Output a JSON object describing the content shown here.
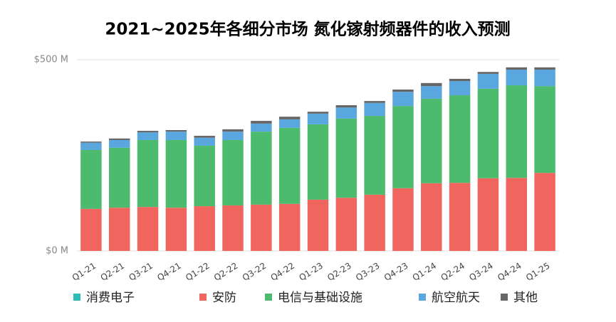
{
  "chart_data": {
    "type": "stacked_bar",
    "title": "2021~2025年各细分市场 氮化镓射频器件的收入预测",
    "categories": [
      "Q1-21",
      "Q2-21",
      "Q3-21",
      "Q4-21",
      "Q1-22",
      "Q2-22",
      "Q3-22",
      "Q4-22",
      "Q1-23",
      "Q2-23",
      "Q3-23",
      "Q4-23",
      "Q1-24",
      "Q2-24",
      "Q3-24",
      "Q4-24",
      "Q1-25"
    ],
    "series": [
      {
        "name": "消费电子",
        "color": "#2bbdb5",
        "values": [
          0,
          0,
          0,
          0,
          0,
          0,
          0,
          0,
          0,
          0,
          0,
          0,
          0,
          0,
          0,
          0,
          0
        ]
      },
      {
        "name": "安防",
        "color": "#f0665e",
        "values": [
          110,
          113,
          115,
          113,
          117,
          119,
          121,
          123,
          134,
          139,
          147,
          164,
          177,
          178,
          190,
          191,
          204
        ]
      },
      {
        "name": "电信与基础设施",
        "color": "#4dbb6e",
        "values": [
          154,
          157,
          175,
          177,
          158,
          171,
          191,
          199,
          197,
          207,
          206,
          215,
          221,
          229,
          234,
          242,
          227
        ]
      },
      {
        "name": "航空航天",
        "color": "#5aa6df",
        "values": [
          19,
          20,
          20,
          22,
          21,
          22,
          21,
          22,
          28,
          29,
          34,
          37,
          33,
          37,
          39,
          41,
          43
        ]
      },
      {
        "name": "其他",
        "color": "#666666",
        "values": [
          3,
          4,
          4,
          4,
          5,
          6,
          7,
          7,
          5,
          6,
          5,
          6,
          8,
          6,
          5,
          6,
          6
        ]
      }
    ],
    "ylim": [
      0,
      500
    ],
    "yticks": [
      {
        "value": 0,
        "label": "$0 M"
      },
      {
        "value": 500,
        "label": "$500 M"
      }
    ],
    "grid": true
  }
}
